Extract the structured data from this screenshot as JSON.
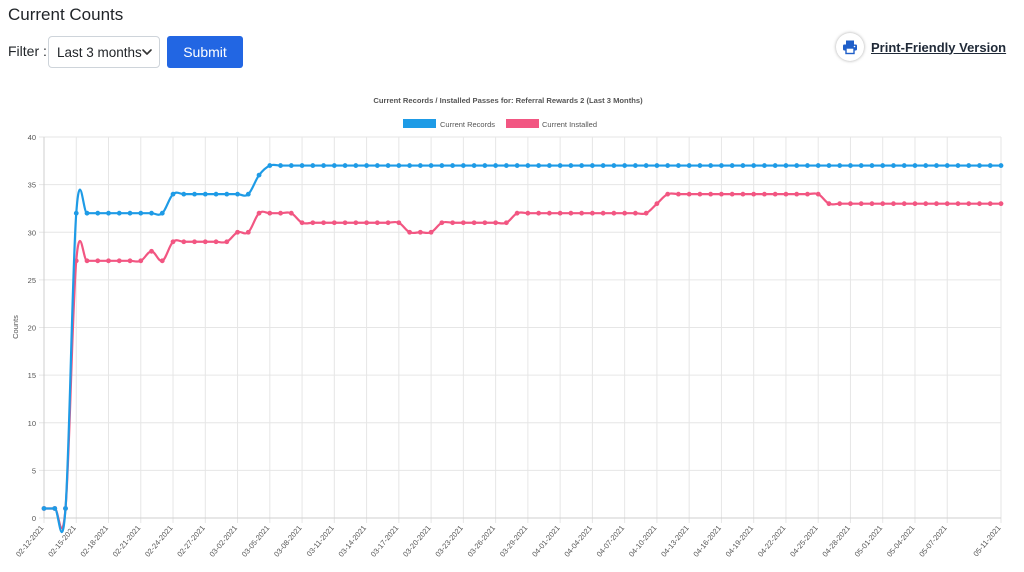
{
  "page": {
    "title": "Current Counts"
  },
  "filter": {
    "label": "Filter :",
    "selected": "Last 3 months"
  },
  "submit": {
    "label": "Submit"
  },
  "print": {
    "label": "Print-Friendly Version",
    "icon": "printer-icon"
  },
  "colors": {
    "records": "#1e9be6",
    "installed": "#f25682",
    "accent": "#2266e3"
  },
  "chart_data": {
    "type": "line",
    "title": "Current Records / Installed Passes for: Referral Rewards 2 (Last 3 Months)",
    "ylabel": "Counts",
    "xlabel": "",
    "ylim": [
      0,
      40
    ],
    "yticks": [
      0,
      5,
      10,
      15,
      20,
      25,
      30,
      35,
      40
    ],
    "legend_position": "top-center",
    "grid": true,
    "x_tick_labels": [
      "02-12-2021",
      "02-15-2021",
      "02-18-2021",
      "02-21-2021",
      "02-24-2021",
      "02-27-2021",
      "03-02-2021",
      "03-05-2021",
      "03-08-2021",
      "03-11-2021",
      "03-14-2021",
      "03-17-2021",
      "03-20-2021",
      "03-23-2021",
      "03-26-2021",
      "03-29-2021",
      "04-01-2021",
      "04-04-2021",
      "04-07-2021",
      "04-10-2021",
      "04-13-2021",
      "04-16-2021",
      "04-19-2021",
      "04-22-2021",
      "04-25-2021",
      "04-28-2021",
      "05-01-2021",
      "05-04-2021",
      "05-07-2021",
      "05-11-2021"
    ],
    "series": [
      {
        "name": "Current Records",
        "color": "#1e9be6",
        "values": [
          1,
          1,
          1,
          32,
          32,
          32,
          32,
          32,
          32,
          32,
          32,
          32,
          34,
          34,
          34,
          34,
          34,
          34,
          34,
          34,
          36,
          37,
          37,
          37,
          37,
          37,
          37,
          37,
          37,
          37,
          37,
          37,
          37,
          37,
          37,
          37,
          37,
          37,
          37,
          37,
          37,
          37,
          37,
          37,
          37,
          37,
          37,
          37,
          37,
          37,
          37,
          37,
          37,
          37,
          37,
          37,
          37,
          37,
          37,
          37,
          37,
          37,
          37,
          37,
          37,
          37,
          37,
          37,
          37,
          37,
          37,
          37,
          37,
          37,
          37,
          37,
          37,
          37,
          37,
          37,
          37,
          37,
          37,
          37,
          37,
          37,
          37,
          37,
          37,
          37
        ]
      },
      {
        "name": "Current Installed",
        "color": "#f25682",
        "values": [
          1,
          1,
          1,
          27,
          27,
          27,
          27,
          27,
          27,
          27,
          28,
          27,
          29,
          29,
          29,
          29,
          29,
          29,
          30,
          30,
          32,
          32,
          32,
          32,
          31,
          31,
          31,
          31,
          31,
          31,
          31,
          31,
          31,
          31,
          30,
          30,
          30,
          31,
          31,
          31,
          31,
          31,
          31,
          31,
          32,
          32,
          32,
          32,
          32,
          32,
          32,
          32,
          32,
          32,
          32,
          32,
          32,
          33,
          34,
          34,
          34,
          34,
          34,
          34,
          34,
          34,
          34,
          34,
          34,
          34,
          34,
          34,
          34,
          33,
          33,
          33,
          33,
          33,
          33,
          33,
          33,
          33,
          33,
          33,
          33,
          33,
          33,
          33,
          33,
          33
        ]
      }
    ]
  }
}
